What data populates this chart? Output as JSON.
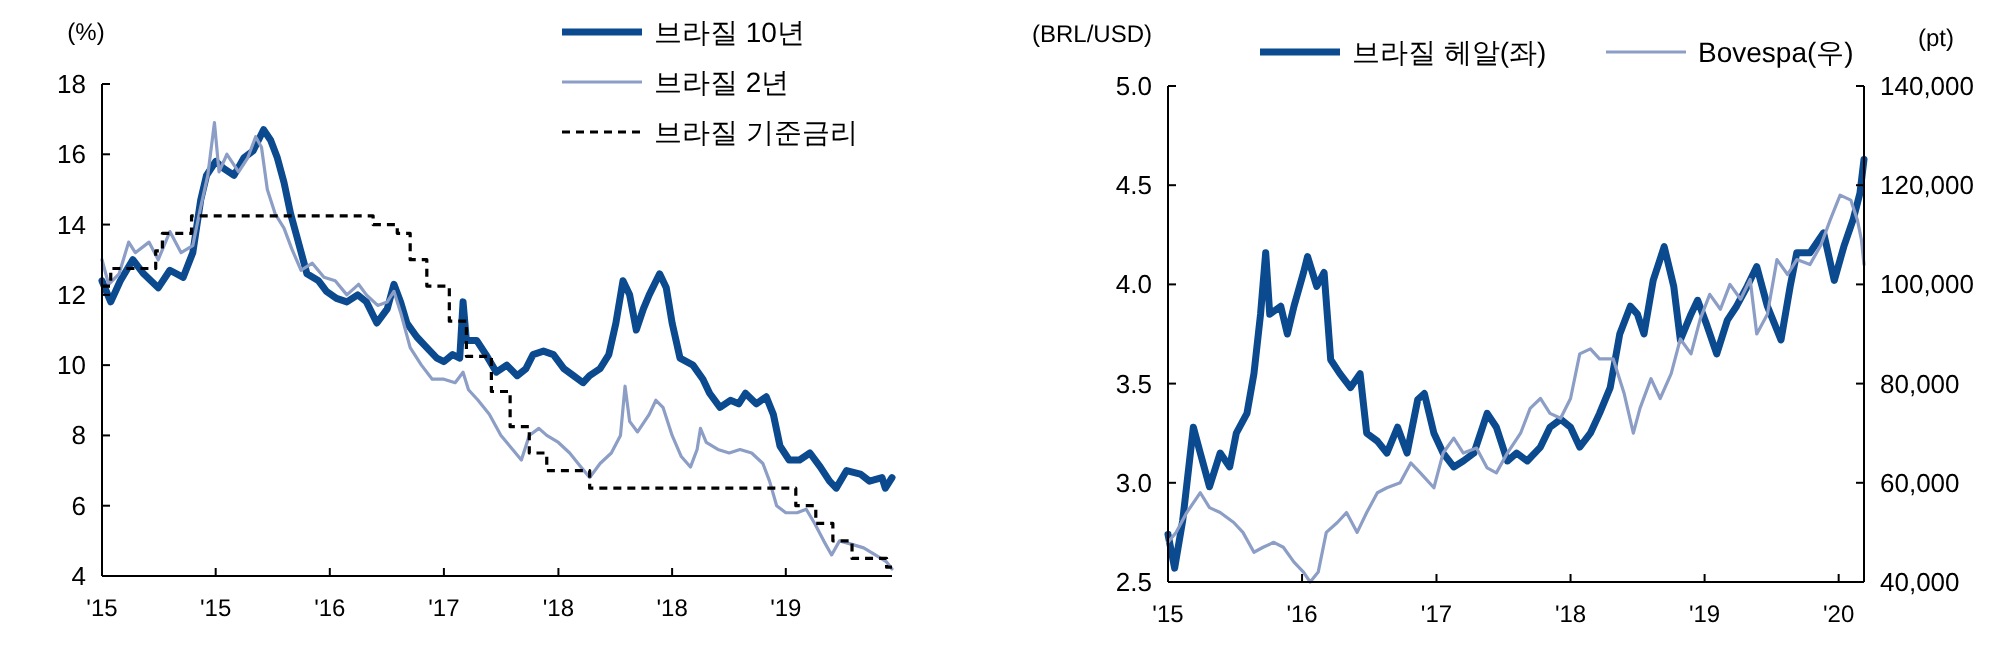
{
  "chart_data": [
    {
      "type": "line",
      "ylabel": "(%)",
      "xlim": [
        "2015-01-01",
        "2020-03-12"
      ],
      "ylim": [
        4,
        18
      ],
      "yticks": [
        4,
        6,
        8,
        10,
        12,
        14,
        16,
        18
      ],
      "xticks": [
        {
          "value": "2015-01-01",
          "label": "'15"
        },
        {
          "value": "2015-10-01",
          "label": "'15"
        },
        {
          "value": "2016-07-01",
          "label": "'16"
        },
        {
          "value": "2017-04-01",
          "label": "'17"
        },
        {
          "value": "2018-01-01",
          "label": "'18"
        },
        {
          "value": "2018-10-01",
          "label": "'18"
        },
        {
          "value": "2019-07-01",
          "label": "'19"
        }
      ],
      "grid": false,
      "legend": "top right",
      "series": [
        {
          "name": "브라질 10년",
          "color": "#0b4a8f",
          "line_style": "solid",
          "x": [
            "2015-01-01",
            "2015-01-22",
            "2015-02-14",
            "2015-03-16",
            "2015-04-11",
            "2015-05-16",
            "2015-06-13",
            "2015-07-15",
            "2015-08-07",
            "2015-08-26",
            "2015-09-09",
            "2015-10-01",
            "2015-10-20",
            "2015-11-14",
            "2015-12-08",
            "2015-12-30",
            "2016-01-24",
            "2016-02-10",
            "2016-02-26",
            "2016-03-13",
            "2016-03-29",
            "2016-04-12",
            "2016-05-07",
            "2016-06-04",
            "2016-06-23",
            "2016-07-17",
            "2016-08-11",
            "2016-09-06",
            "2016-09-27",
            "2016-10-22",
            "2016-11-16",
            "2016-12-02",
            "2016-12-18",
            "2017-01-02",
            "2017-01-26",
            "2017-02-19",
            "2017-03-15",
            "2017-04-01",
            "2017-04-22",
            "2017-05-09",
            "2017-05-17",
            "2017-05-25",
            "2017-06-19",
            "2017-07-11",
            "2017-08-05",
            "2017-08-30",
            "2017-09-24",
            "2017-10-15",
            "2017-11-01",
            "2017-11-26",
            "2017-12-20",
            "2018-01-14",
            "2018-02-06",
            "2018-03-01",
            "2018-03-17",
            "2018-04-11",
            "2018-05-02",
            "2018-05-19",
            "2018-06-05",
            "2018-06-21",
            "2018-07-07",
            "2018-07-24",
            "2018-08-07",
            "2018-09-01",
            "2018-09-17",
            "2018-10-01",
            "2018-10-20",
            "2018-11-20",
            "2018-12-14",
            "2018-12-30",
            "2019-01-24",
            "2019-02-18",
            "2019-03-10",
            "2019-03-26",
            "2019-04-21",
            "2019-05-15",
            "2019-06-01",
            "2019-06-17",
            "2019-07-09",
            "2019-08-03",
            "2019-08-28",
            "2019-09-22",
            "2019-10-14",
            "2019-10-30",
            "2019-11-24",
            "2019-12-27",
            "2020-01-18",
            "2020-02-17",
            "2020-02-25",
            "2020-03-12"
          ],
          "values": [
            12.4,
            11.8,
            12.4,
            13.0,
            12.6,
            12.2,
            12.7,
            12.5,
            13.2,
            14.7,
            15.4,
            15.8,
            15.6,
            15.4,
            15.9,
            16.1,
            16.7,
            16.4,
            15.9,
            15.2,
            14.3,
            13.7,
            12.6,
            12.4,
            12.1,
            11.9,
            11.8,
            12.0,
            11.8,
            11.2,
            11.6,
            12.3,
            11.8,
            11.2,
            10.8,
            10.5,
            10.2,
            10.1,
            10.3,
            10.2,
            11.8,
            10.7,
            10.7,
            10.3,
            9.8,
            10.0,
            9.7,
            9.9,
            10.3,
            10.4,
            10.3,
            9.9,
            9.7,
            9.5,
            9.7,
            9.9,
            10.3,
            11.2,
            12.4,
            12.0,
            11.0,
            11.6,
            12.0,
            12.6,
            12.2,
            11.2,
            10.2,
            10.0,
            9.6,
            9.2,
            8.8,
            9.0,
            8.9,
            9.2,
            8.9,
            9.1,
            8.6,
            7.7,
            7.3,
            7.3,
            7.5,
            7.1,
            6.7,
            6.5,
            7.0,
            6.9,
            6.7,
            6.8,
            6.5,
            6.8
          ]
        },
        {
          "name": "브라질 2년",
          "color": "#8c9ec6",
          "line_style": "solid",
          "x": [
            "2015-01-01",
            "2015-01-17",
            "2015-02-11",
            "2015-03-06",
            "2015-03-22",
            "2015-04-24",
            "2015-05-16",
            "2015-06-13",
            "2015-07-10",
            "2015-08-07",
            "2015-08-26",
            "2015-09-12",
            "2015-09-28",
            "2015-10-09",
            "2015-10-28",
            "2015-11-25",
            "2015-12-17",
            "2016-01-05",
            "2016-01-19",
            "2016-02-02",
            "2016-02-21",
            "2016-03-13",
            "2016-04-01",
            "2016-04-23",
            "2016-05-20",
            "2016-06-17",
            "2016-07-14",
            "2016-08-11",
            "2016-09-08",
            "2016-09-27",
            "2016-10-24",
            "2016-11-16",
            "2016-12-02",
            "2016-12-18",
            "2017-01-10",
            "2017-02-06",
            "2017-03-04",
            "2017-04-01",
            "2017-04-28",
            "2017-05-17",
            "2017-05-30",
            "2017-06-22",
            "2017-07-19",
            "2017-08-16",
            "2017-09-13",
            "2017-10-04",
            "2017-10-23",
            "2017-11-15",
            "2017-12-04",
            "2018-01-01",
            "2018-01-28",
            "2018-02-24",
            "2018-03-17",
            "2018-04-11",
            "2018-05-08",
            "2018-05-30",
            "2018-06-10",
            "2018-06-21",
            "2018-07-10",
            "2018-08-07",
            "2018-08-23",
            "2018-09-09",
            "2018-10-01",
            "2018-10-23",
            "2018-11-14",
            "2018-11-30",
            "2018-12-08",
            "2018-12-22",
            "2019-01-19",
            "2019-02-15",
            "2019-03-13",
            "2019-04-10",
            "2019-05-07",
            "2019-05-23",
            "2019-06-09",
            "2019-07-01",
            "2019-07-28",
            "2019-08-19",
            "2019-09-08",
            "2019-09-30",
            "2019-10-19",
            "2019-11-07",
            "2019-12-07",
            "2020-01-04",
            "2020-02-01",
            "2020-02-28",
            "2020-03-12"
          ],
          "values": [
            13.0,
            12.3,
            12.6,
            13.5,
            13.2,
            13.5,
            13.0,
            13.8,
            13.2,
            13.4,
            14.5,
            15.4,
            16.9,
            15.5,
            16.0,
            15.5,
            15.9,
            16.5,
            16.2,
            15.0,
            14.3,
            13.9,
            13.3,
            12.7,
            12.9,
            12.5,
            12.4,
            12.0,
            12.3,
            12.0,
            11.7,
            11.8,
            12.1,
            11.5,
            10.5,
            10.0,
            9.6,
            9.6,
            9.5,
            9.8,
            9.3,
            9.0,
            8.6,
            8.0,
            7.6,
            7.3,
            8.0,
            8.2,
            8.0,
            7.8,
            7.5,
            7.1,
            6.8,
            7.2,
            7.5,
            8.0,
            9.4,
            8.4,
            8.1,
            8.6,
            9.0,
            8.8,
            8.0,
            7.4,
            7.1,
            7.6,
            8.2,
            7.8,
            7.6,
            7.5,
            7.6,
            7.5,
            7.2,
            6.7,
            6.0,
            5.8,
            5.8,
            5.9,
            5.5,
            5.0,
            4.6,
            5.0,
            4.9,
            4.8,
            4.6,
            4.4,
            4.2
          ]
        },
        {
          "name": "브라질 기준금리",
          "type": "step",
          "color": "#000000",
          "line_style": "dashed",
          "x": [
            "2015-01-01",
            "2015-01-22",
            "2015-05-10",
            "2015-05-26",
            "2015-08-04",
            "2016-10-13",
            "2016-12-10",
            "2017-01-10",
            "2017-02-19",
            "2017-04-14",
            "2017-05-25",
            "2017-07-24",
            "2017-09-07",
            "2017-10-23",
            "2017-12-04",
            "2018-03-17",
            "2019-07-25",
            "2019-09-11",
            "2019-10-22",
            "2019-12-07",
            "2020-02-28",
            "2020-03-12"
          ],
          "values": [
            12.25,
            12.75,
            13.25,
            13.75,
            14.25,
            14.0,
            13.75,
            13.0,
            12.25,
            11.25,
            10.25,
            9.25,
            8.25,
            7.5,
            7.0,
            6.5,
            6.0,
            5.5,
            5.0,
            4.5,
            4.25,
            4.25
          ]
        }
      ]
    },
    {
      "type": "line",
      "ylabel": "(BRL/USD)",
      "y2label": "(pt)",
      "xlim": [
        "2015-01-01",
        "2020-03-10"
      ],
      "ylim": [
        2.5,
        5.0
      ],
      "yticks": [
        {
          "value": 2.5,
          "label": "2.5"
        },
        {
          "value": 3,
          "label": "3.0"
        },
        {
          "value": 3.5,
          "label": "3.5"
        },
        {
          "value": 4,
          "label": "4.0"
        },
        {
          "value": 4.5,
          "label": "4.5"
        },
        {
          "value": 5,
          "label": "5.0"
        }
      ],
      "y2lim": [
        40000,
        140000
      ],
      "y2ticks": [
        {
          "value": 40000,
          "label": "40,000"
        },
        {
          "value": 60000,
          "label": "60,000"
        },
        {
          "value": 80000,
          "label": "80,000"
        },
        {
          "value": 100000,
          "label": "100,000"
        },
        {
          "value": 120000,
          "label": "120,000"
        },
        {
          "value": 140000,
          "label": "140,000"
        }
      ],
      "xticks": [
        {
          "value": "2015-01-01",
          "label": "'15"
        },
        {
          "value": "2016-01-01",
          "label": "'16"
        },
        {
          "value": "2017-01-01",
          "label": "'17"
        },
        {
          "value": "2018-01-01",
          "label": "'18"
        },
        {
          "value": "2019-01-01",
          "label": "'19"
        },
        {
          "value": "2020-01-01",
          "label": "'20"
        }
      ],
      "grid": false,
      "legend": "top",
      "series": [
        {
          "name": "브라질 헤알(좌)",
          "color": "#0b4a8f",
          "line_style": "solid",
          "x": [
            "2015-01-01",
            "2015-01-19",
            "2015-02-10",
            "2015-03-11",
            "2015-03-30",
            "2015-04-24",
            "2015-05-23",
            "2015-06-18",
            "2015-07-06",
            "2015-08-04",
            "2015-08-23",
            "2015-09-10",
            "2015-09-24",
            "2015-10-05",
            "2015-11-04",
            "2015-11-22",
            "2015-12-10",
            "2016-01-05",
            "2016-01-16",
            "2016-02-10",
            "2016-03-01",
            "2016-03-19",
            "2016-04-13",
            "2016-05-12",
            "2016-06-07",
            "2016-06-25",
            "2016-07-24",
            "2016-08-19",
            "2016-09-17",
            "2016-10-13",
            "2016-11-11",
            "2016-11-29",
            "2016-12-25",
            "2017-01-19",
            "2017-02-17",
            "2017-03-15",
            "2017-04-13",
            "2017-05-19",
            "2017-06-13",
            "2017-07-13",
            "2017-08-07",
            "2017-09-05",
            "2017-10-11",
            "2017-11-06",
            "2017-12-05",
            "2018-01-01",
            "2018-01-26",
            "2018-02-24",
            "2018-03-21",
            "2018-04-19",
            "2018-05-15",
            "2018-06-13",
            "2018-07-02",
            "2018-07-20",
            "2018-08-14",
            "2018-09-13",
            "2018-10-09",
            "2018-10-27",
            "2018-11-25",
            "2018-12-13",
            "2019-01-08",
            "2019-02-03",
            "2019-03-04",
            "2019-03-29",
            "2019-04-27",
            "2019-05-23",
            "2019-06-21",
            "2019-07-28",
            "2019-08-22",
            "2019-09-09",
            "2019-10-15",
            "2019-11-21",
            "2019-12-20",
            "2020-01-15",
            "2020-02-10",
            "2020-02-28",
            "2020-03-10"
          ],
          "values": [
            2.74,
            2.57,
            2.81,
            3.28,
            3.15,
            2.98,
            3.15,
            3.08,
            3.25,
            3.35,
            3.55,
            3.85,
            4.16,
            3.85,
            3.89,
            3.75,
            3.89,
            4.06,
            4.14,
            3.99,
            4.06,
            3.62,
            3.55,
            3.48,
            3.55,
            3.25,
            3.21,
            3.15,
            3.28,
            3.15,
            3.42,
            3.45,
            3.25,
            3.15,
            3.08,
            3.11,
            3.15,
            3.35,
            3.28,
            3.11,
            3.15,
            3.11,
            3.18,
            3.28,
            3.32,
            3.28,
            3.18,
            3.25,
            3.35,
            3.48,
            3.75,
            3.89,
            3.85,
            3.75,
            4.02,
            4.19,
            3.99,
            3.72,
            3.85,
            3.92,
            3.79,
            3.65,
            3.82,
            3.89,
            3.99,
            4.09,
            3.89,
            3.72,
            3.99,
            4.16,
            4.16,
            4.26,
            4.02,
            4.19,
            4.33,
            4.46,
            4.63
          ]
        },
        {
          "name": "Bovespa(우)",
          "color": "#8c9ec6",
          "line_style": "solid",
          "axis": "y2",
          "x": [
            "2015-01-01",
            "2015-01-23",
            "2015-02-21",
            "2015-03-30",
            "2015-04-24",
            "2015-05-23",
            "2015-06-29",
            "2015-07-24",
            "2015-08-23",
            "2015-09-17",
            "2015-10-16",
            "2015-11-11",
            "2015-12-10",
            "2016-01-05",
            "2016-01-23",
            "2016-02-14",
            "2016-03-07",
            "2016-04-06",
            "2016-05-01",
            "2016-05-30",
            "2016-06-25",
            "2016-07-24",
            "2016-08-19",
            "2016-09-24",
            "2016-10-23",
            "2016-11-18",
            "2016-12-25",
            "2017-01-19",
            "2017-02-17",
            "2017-03-15",
            "2017-04-20",
            "2017-05-19",
            "2017-06-13",
            "2017-07-13",
            "2017-08-18",
            "2017-09-13",
            "2017-10-11",
            "2017-11-06",
            "2017-12-05",
            "2018-01-01",
            "2018-01-26",
            "2018-02-24",
            "2018-03-21",
            "2018-04-27",
            "2018-05-27",
            "2018-06-21",
            "2018-07-09",
            "2018-08-08",
            "2018-09-02",
            "2018-10-02",
            "2018-10-27",
            "2018-11-25",
            "2018-12-20",
            "2019-01-15",
            "2019-02-13",
            "2019-03-11",
            "2019-04-09",
            "2019-05-05",
            "2019-05-23",
            "2019-06-21",
            "2019-07-17",
            "2019-08-15",
            "2019-09-09",
            "2019-10-15",
            "2019-11-14",
            "2019-12-09",
            "2020-01-05",
            "2020-02-03",
            "2020-02-21",
            "2020-03-03",
            "2020-03-10"
          ],
          "values": [
            48000,
            50000,
            54000,
            58000,
            55000,
            54000,
            52000,
            50000,
            46000,
            47000,
            48000,
            47000,
            44000,
            42000,
            40000,
            42000,
            50000,
            52000,
            54000,
            50000,
            54000,
            58000,
            59000,
            60000,
            64000,
            62000,
            59000,
            66000,
            69000,
            66000,
            67000,
            63000,
            62000,
            66000,
            70000,
            75000,
            77000,
            74000,
            73000,
            77000,
            86000,
            87000,
            85000,
            85000,
            78000,
            70000,
            75000,
            81000,
            77000,
            82000,
            89000,
            86000,
            93000,
            98000,
            95000,
            100000,
            97000,
            101000,
            90000,
            94000,
            105000,
            102000,
            105000,
            104000,
            108000,
            113000,
            118000,
            117000,
            113000,
            109000,
            104000
          ]
        }
      ]
    }
  ]
}
